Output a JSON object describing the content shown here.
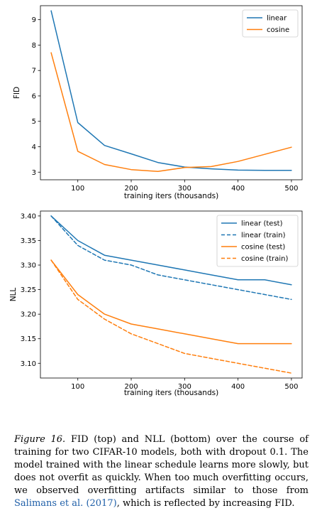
{
  "chart_data": [
    {
      "type": "line",
      "xlabel": "training iters (thousands)",
      "ylabel": "FID",
      "xlim": [
        30,
        520
      ],
      "ylim": [
        2.7,
        9.55
      ],
      "xticks": [
        100,
        200,
        300,
        400,
        500
      ],
      "yticks": [
        3,
        4,
        5,
        6,
        7,
        8,
        9
      ],
      "legend": "top-right",
      "grid": false,
      "series": [
        {
          "name": "linear",
          "color": "#1f77b4",
          "dash": false,
          "x": [
            50,
            100,
            150,
            200,
            250,
            300,
            350,
            400,
            450,
            500
          ],
          "y": [
            9.35,
            4.95,
            4.05,
            3.72,
            3.38,
            3.2,
            3.13,
            3.08,
            3.07,
            3.07
          ]
        },
        {
          "name": "cosine",
          "color": "#ff7f0e",
          "dash": false,
          "x": [
            50,
            100,
            150,
            200,
            250,
            300,
            350,
            400,
            450,
            500
          ],
          "y": [
            7.7,
            3.82,
            3.3,
            3.1,
            3.03,
            3.18,
            3.22,
            3.42,
            3.7,
            3.98
          ]
        }
      ]
    },
    {
      "type": "line",
      "xlabel": "training iters (thousands)",
      "ylabel": "NLL",
      "xlim": [
        30,
        520
      ],
      "ylim": [
        3.07,
        3.41
      ],
      "xticks": [
        100,
        200,
        300,
        400,
        500
      ],
      "yticks": [
        3.1,
        3.15,
        3.2,
        3.25,
        3.3,
        3.35,
        3.4
      ],
      "legend": "top-right",
      "grid": false,
      "series": [
        {
          "name": "linear (test)",
          "color": "#1f77b4",
          "dash": false,
          "x": [
            50,
            100,
            150,
            200,
            250,
            300,
            350,
            400,
            450,
            500
          ],
          "y": [
            3.4,
            3.35,
            3.32,
            3.31,
            3.3,
            3.29,
            3.28,
            3.27,
            3.27,
            3.26
          ]
        },
        {
          "name": "linear (train)",
          "color": "#1f77b4",
          "dash": true,
          "x": [
            50,
            100,
            150,
            200,
            250,
            300,
            350,
            400,
            450,
            500
          ],
          "y": [
            3.4,
            3.34,
            3.31,
            3.3,
            3.28,
            3.27,
            3.26,
            3.25,
            3.24,
            3.23
          ]
        },
        {
          "name": "cosine (test)",
          "color": "#ff7f0e",
          "dash": false,
          "x": [
            50,
            100,
            150,
            200,
            250,
            300,
            350,
            400,
            450,
            500
          ],
          "y": [
            3.31,
            3.24,
            3.2,
            3.18,
            3.17,
            3.16,
            3.15,
            3.14,
            3.14,
            3.14
          ]
        },
        {
          "name": "cosine (train)",
          "color": "#ff7f0e",
          "dash": true,
          "x": [
            50,
            100,
            150,
            200,
            250,
            300,
            350,
            400,
            450,
            500
          ],
          "y": [
            3.31,
            3.23,
            3.19,
            3.16,
            3.14,
            3.12,
            3.11,
            3.1,
            3.09,
            3.08
          ]
        }
      ]
    }
  ],
  "caption": {
    "lead": "Figure 16.",
    "text1": " FID (top) and NLL (bottom) over the course of training for two CIFAR-10 models, both with dropout 0.1. The model trained with the linear schedule learns more slowly, but does not overfit as quickly. When too much overfitting occurs, we observed overfitting artifacts similar to those from ",
    "cite": "Salimans et al. (2017)",
    "text2": ", which is reflected by increasing FID."
  }
}
